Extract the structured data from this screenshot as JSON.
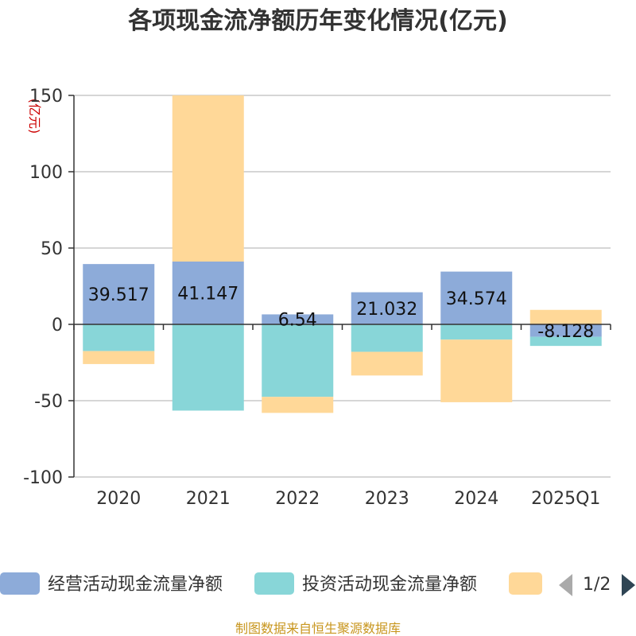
{
  "chart_data": {
    "type": "bar",
    "stacked": true,
    "title": "各项现金流净额历年变化情况(亿元)",
    "ylabel": "(亿元)",
    "xlabel": "",
    "ylim": [
      -100,
      150
    ],
    "yticks": [
      150,
      100,
      50,
      0,
      -50,
      -100
    ],
    "grid": true,
    "categories": [
      "2020",
      "2021",
      "2022",
      "2023",
      "2024",
      "2025Q1"
    ],
    "series": [
      {
        "name": "经营活动现金流量净额",
        "color": "#8dabd9",
        "values": [
          39.517,
          41.147,
          6.54,
          21.032,
          34.574,
          -8.128
        ],
        "labels": [
          "39.517",
          "41.147",
          "6.54",
          "21.032",
          "34.574",
          "-8.128"
        ]
      },
      {
        "name": "投资活动现金流量净额",
        "color": "#88d6d8",
        "values": [
          -17.5,
          -56.5,
          -47.5,
          -18.0,
          -10.0,
          -6.0
        ]
      },
      {
        "name": "",
        "color": "#ffd898",
        "values": [
          -8.5,
          108.9,
          -10.5,
          -15.5,
          -41.0,
          9.5
        ]
      }
    ],
    "legend_position": "bottom",
    "legend_page": "1/2",
    "source": "制图数据来自恒生聚源数据库"
  }
}
